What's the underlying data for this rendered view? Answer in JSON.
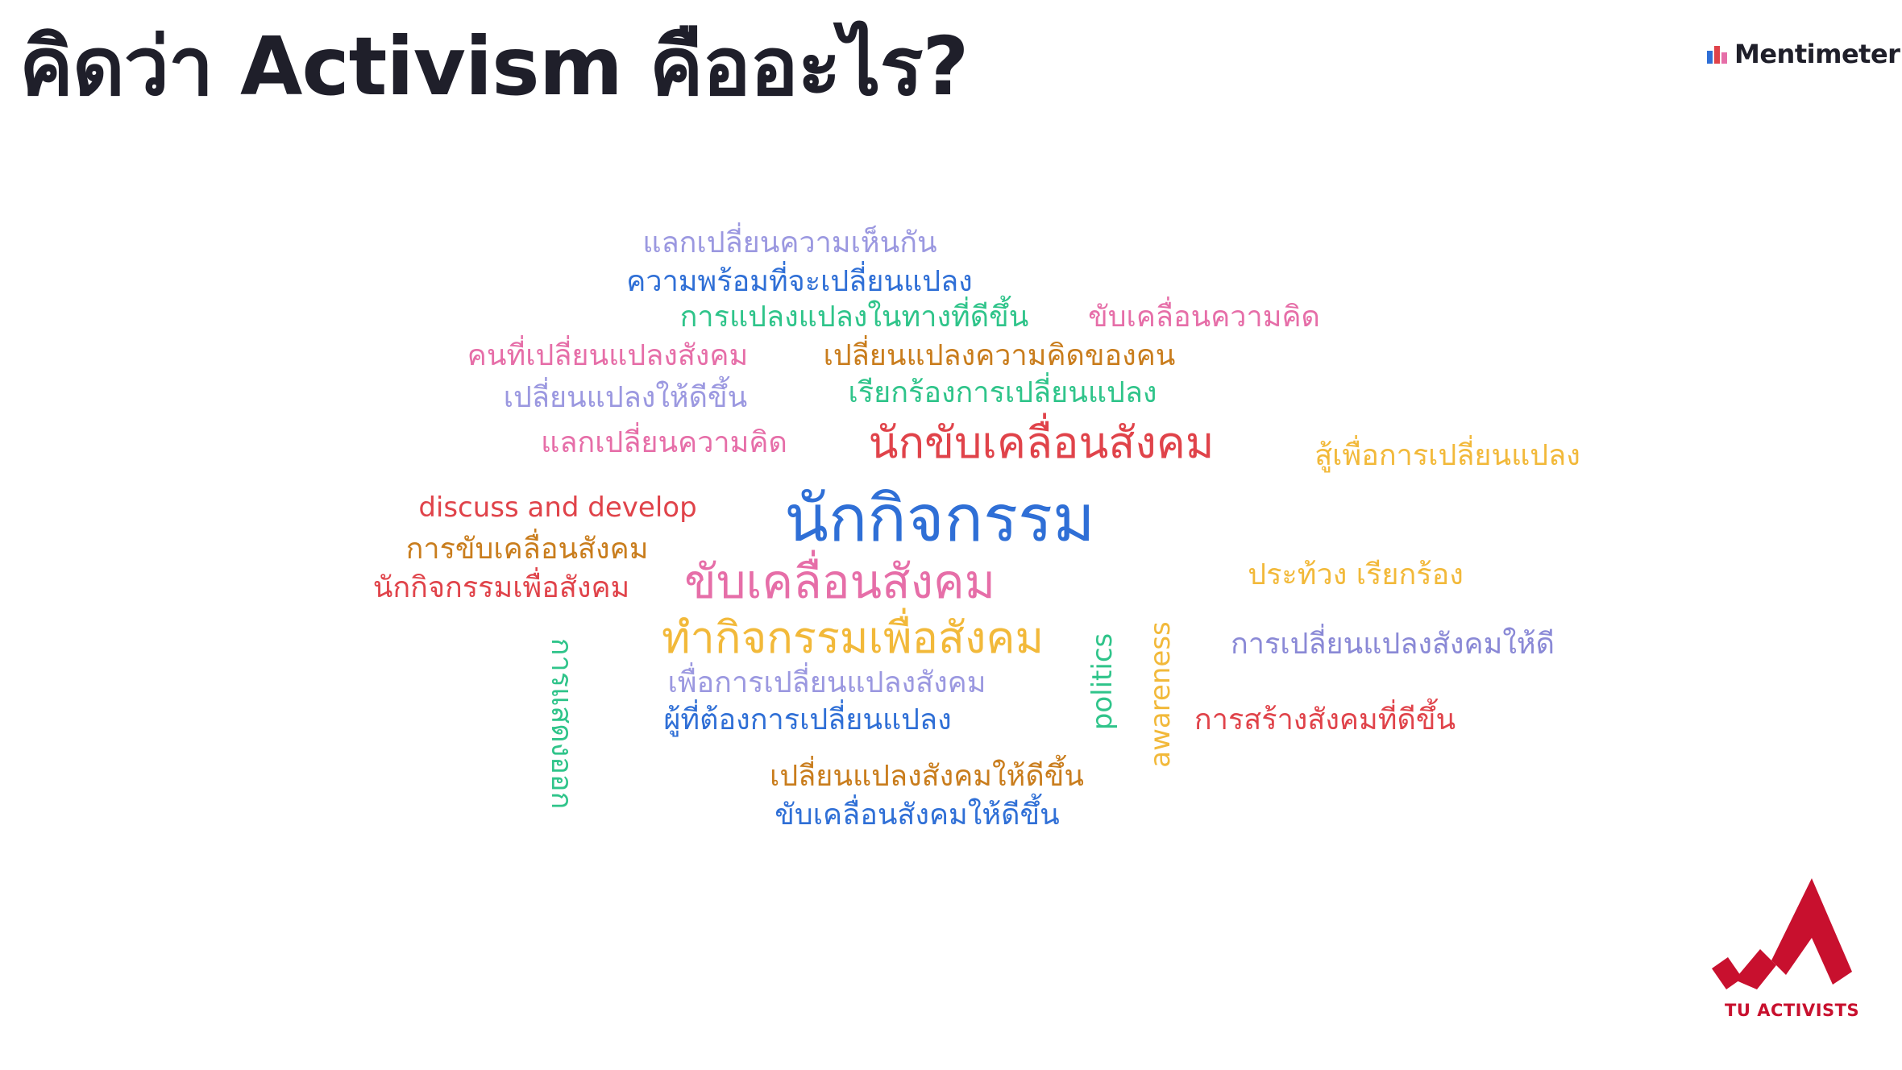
{
  "slide": {
    "title": "คิดว่า Activism คืออะไร?",
    "brand": "Mentimeter",
    "org_label": "TU ACTIVISTS"
  },
  "colors": {
    "title": "#1f1f2a",
    "lavender": "#9b98e0",
    "blue": "#2f6fd6",
    "green": "#2fc48a",
    "pink": "#e66ea8",
    "orange": "#c97d1d",
    "red": "#e0434a",
    "yellow": "#f2b93a",
    "purple": "#8a89d6",
    "crimson": "#c8102e"
  },
  "word_cloud": [
    {
      "text": "แลกเปลี่ยนความเห็นกัน",
      "color": "lavender"
    },
    {
      "text": "ความพร้อมที่จะเปลี่ยนแปลง",
      "color": "blue"
    },
    {
      "text": "การแปลงแปลงในทางที่ดีขึ้น",
      "color": "green"
    },
    {
      "text": "ขับเคลื่อนความคิด",
      "color": "pink"
    },
    {
      "text": "คนที่เปลี่ยนแปลงสังคม",
      "color": "pink"
    },
    {
      "text": "เปลี่ยนแปลงความคิดของคน",
      "color": "orange"
    },
    {
      "text": "เปลี่ยนแปลงให้ดีขึ้น",
      "color": "lavender"
    },
    {
      "text": "เรียกร้องการเปลี่ยนแปลง",
      "color": "green"
    },
    {
      "text": "แลกเปลี่ยนความคิด",
      "color": "pink"
    },
    {
      "text": "นักขับเคลื่อนสังคม",
      "color": "red"
    },
    {
      "text": "สู้เพื่อการเปลี่ยนแปลง",
      "color": "yellow"
    },
    {
      "text": "discuss and develop",
      "color": "red"
    },
    {
      "text": "นักกิจกรรม",
      "color": "blue"
    },
    {
      "text": "การขับเคลื่อนสังคม",
      "color": "orange"
    },
    {
      "text": "นักกิจกรรมเพื่อสังคม",
      "color": "red"
    },
    {
      "text": "ขับเคลื่อนสังคม",
      "color": "pink"
    },
    {
      "text": "ประท้วง เรียกร้อง",
      "color": "yellow"
    },
    {
      "text": "ทำกิจกรรมเพื่อสังคม",
      "color": "yellow"
    },
    {
      "text": "การเปลี่ยนแปลงสังคมให้ดี",
      "color": "purple"
    },
    {
      "text": "เพื่อการเปลี่ยนแปลงสังคม",
      "color": "lavender"
    },
    {
      "text": "ผู้ที่ต้องการเปลี่ยนแปลง",
      "color": "blue"
    },
    {
      "text": "การสร้างสังคมที่ดีขึ้น",
      "color": "red"
    },
    {
      "text": "เปลี่ยนแปลงสังคมให้ดีขึ้น",
      "color": "orange"
    },
    {
      "text": "ขับเคลื่อนสังคมให้ดีขึ้น",
      "color": "blue"
    },
    {
      "text": "การแสดงออก",
      "color": "green"
    },
    {
      "text": "politics",
      "color": "green"
    },
    {
      "text": "awareness",
      "color": "yellow"
    }
  ]
}
